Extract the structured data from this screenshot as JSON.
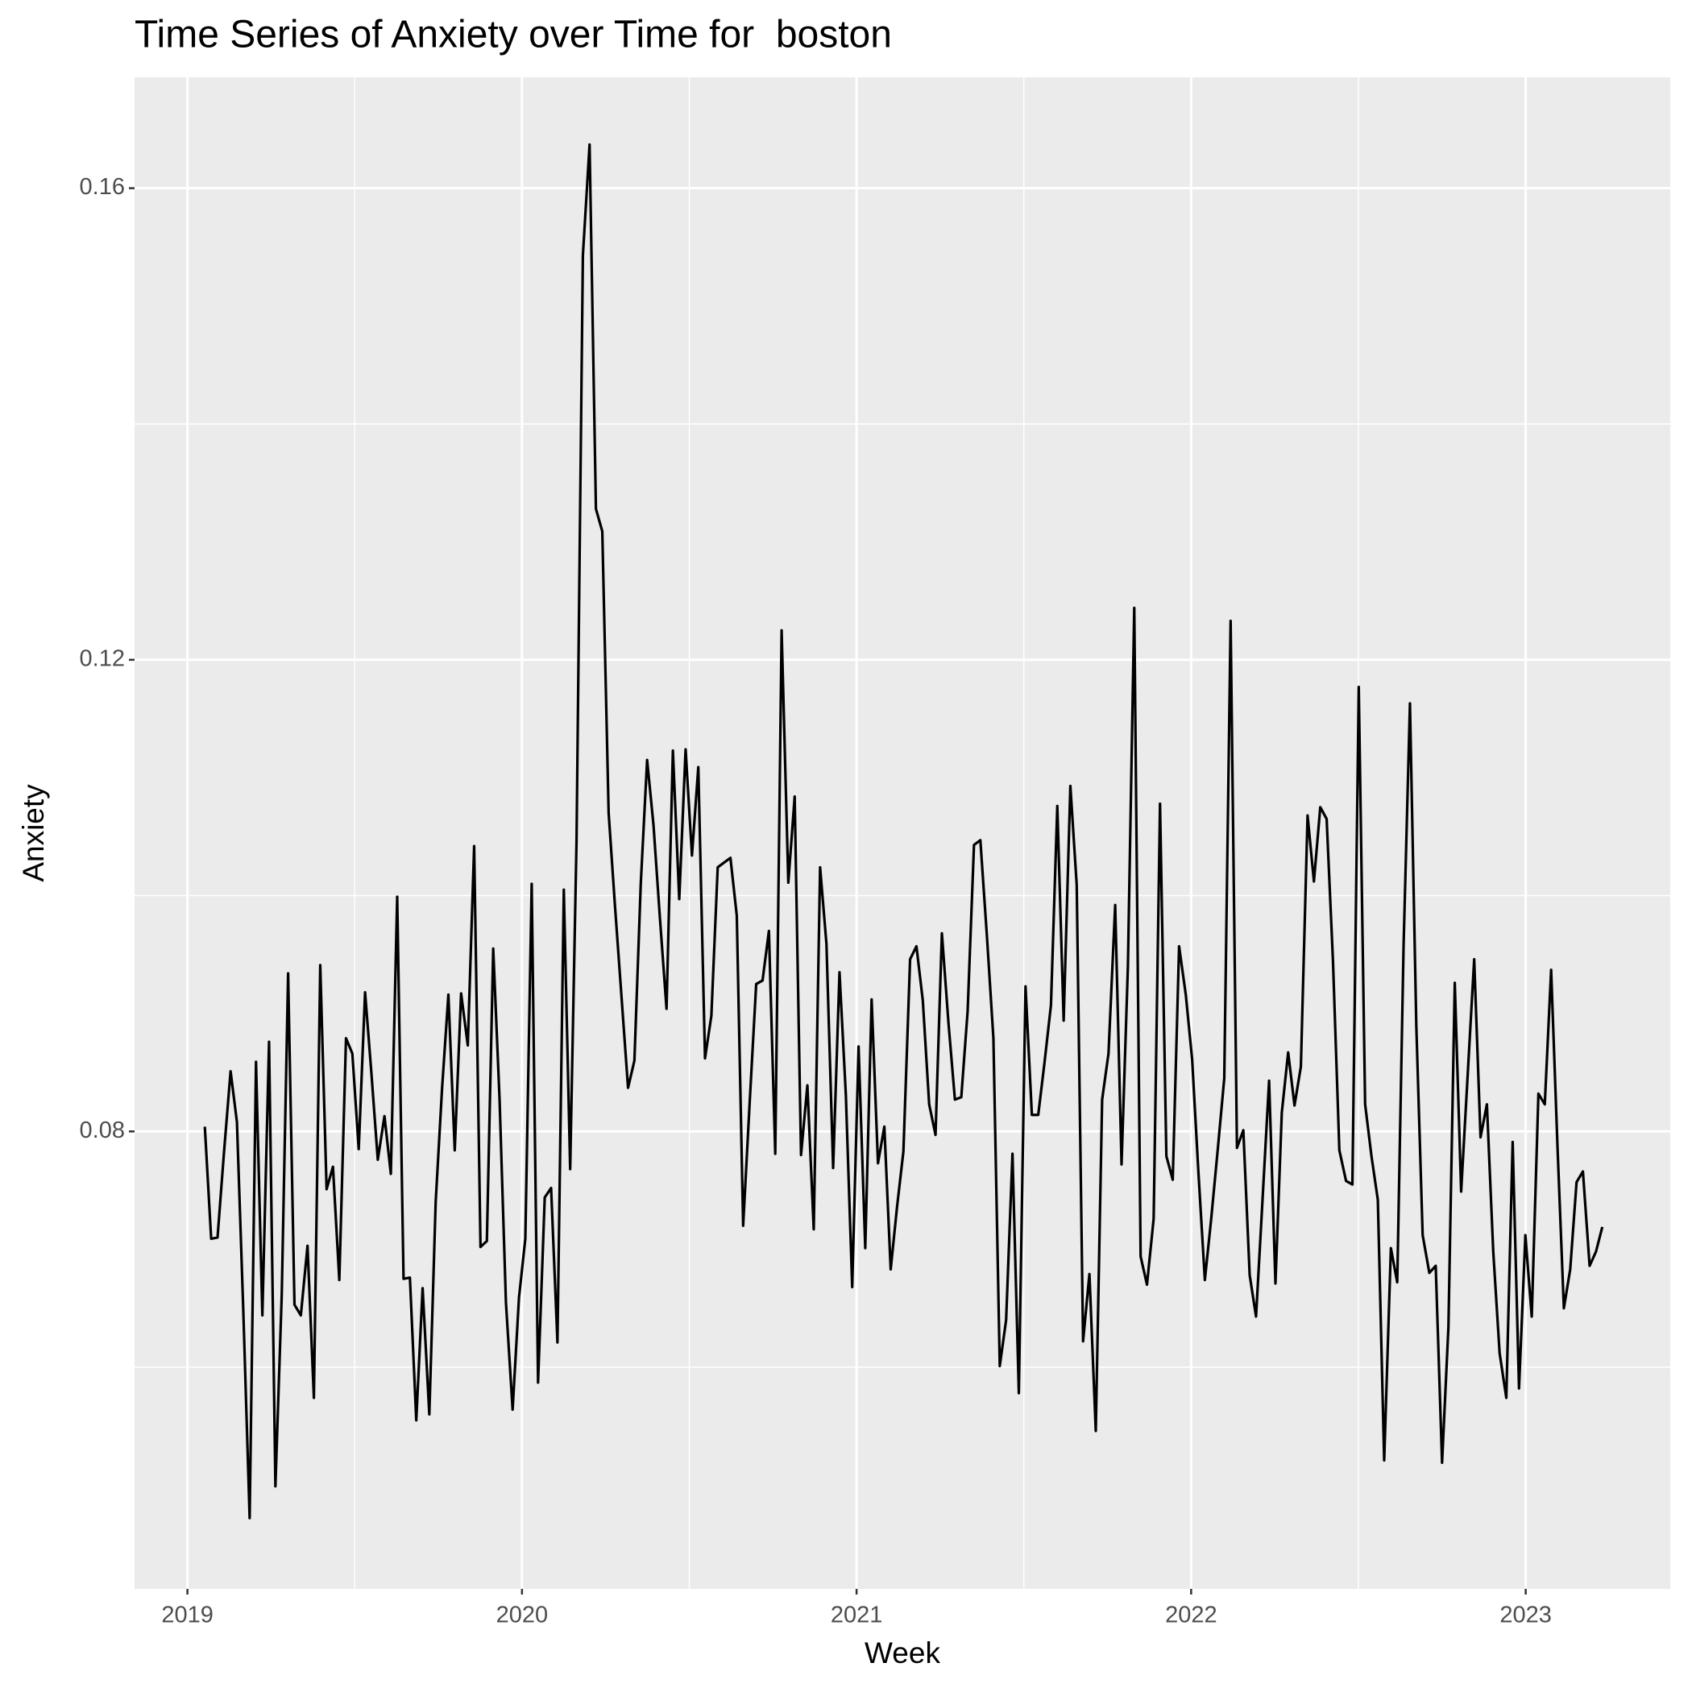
{
  "chart_data": {
    "type": "line",
    "title": "Time Series of Anxiety over Time for  boston",
    "x_label": "Week",
    "y_label": "Anxiety",
    "color": "#000000",
    "grid": true,
    "xlim": [
      2018.842,
      2023.432
    ],
    "xticks": [
      2019,
      2020,
      2021,
      2022,
      2023
    ],
    "ylim": [
      0.0412,
      0.1694
    ],
    "yticks": [
      0.08,
      0.12,
      0.16
    ],
    "x": [
      2019.052,
      2019.071,
      2019.09,
      2019.109,
      2019.129,
      2019.148,
      2019.167,
      2019.186,
      2019.205,
      2019.224,
      2019.244,
      2019.263,
      2019.282,
      2019.301,
      2019.32,
      2019.339,
      2019.359,
      2019.378,
      2019.397,
      2019.416,
      2019.435,
      2019.454,
      2019.474,
      2019.493,
      2019.512,
      2019.531,
      2019.55,
      2019.569,
      2019.589,
      2019.608,
      2019.627,
      2019.646,
      2019.665,
      2019.684,
      2019.703,
      2019.723,
      2019.742,
      2019.761,
      2019.78,
      2019.799,
      2019.818,
      2019.838,
      2019.857,
      2019.876,
      2019.895,
      2019.914,
      2019.933,
      2019.952,
      2019.972,
      2019.991,
      2020.01,
      2020.029,
      2020.048,
      2020.068,
      2020.087,
      2020.106,
      2020.125,
      2020.144,
      2020.163,
      2020.182,
      2020.202,
      2020.221,
      2020.24,
      2020.259,
      2020.278,
      2020.297,
      2020.317,
      2020.336,
      2020.355,
      2020.374,
      2020.393,
      2020.412,
      2020.432,
      2020.451,
      2020.47,
      2020.489,
      2020.508,
      2020.527,
      2020.547,
      2020.566,
      2020.585,
      2020.604,
      2020.623,
      2020.642,
      2020.661,
      2020.681,
      2020.7,
      2020.719,
      2020.738,
      2020.757,
      2020.776,
      2020.796,
      2020.815,
      2020.834,
      2020.853,
      2020.872,
      2020.891,
      2020.91,
      2020.93,
      2020.949,
      2020.968,
      2020.987,
      2021.006,
      2021.026,
      2021.045,
      2021.064,
      2021.083,
      2021.102,
      2021.121,
      2021.14,
      2021.16,
      2021.179,
      2021.198,
      2021.217,
      2021.236,
      2021.255,
      2021.275,
      2021.294,
      2021.313,
      2021.332,
      2021.351,
      2021.37,
      2021.39,
      2021.409,
      2021.428,
      2021.447,
      2021.466,
      2021.485,
      2021.505,
      2021.524,
      2021.543,
      2021.562,
      2021.581,
      2021.6,
      2021.619,
      2021.639,
      2021.658,
      2021.677,
      2021.696,
      2021.715,
      2021.734,
      2021.753,
      2021.773,
      2021.792,
      2021.811,
      2021.83,
      2021.849,
      2021.868,
      2021.888,
      2021.907,
      2021.926,
      2021.945,
      2021.964,
      2021.984,
      2022.003,
      2022.022,
      2022.041,
      2022.06,
      2022.08,
      2022.099,
      2022.118,
      2022.137,
      2022.156,
      2022.175,
      2022.194,
      2022.213,
      2022.233,
      2022.252,
      2022.271,
      2022.29,
      2022.309,
      2022.328,
      2022.348,
      2022.367,
      2022.386,
      2022.405,
      2022.424,
      2022.443,
      2022.463,
      2022.482,
      2022.501,
      2022.52,
      2022.539,
      2022.558,
      2022.577,
      2022.597,
      2022.616,
      2022.635,
      2022.654,
      2022.673,
      2022.692,
      2022.712,
      2022.731,
      2022.75,
      2022.769,
      2022.788,
      2022.807,
      2022.826,
      2022.846,
      2022.865,
      2022.884,
      2022.903,
      2022.922,
      2022.942,
      2022.961,
      2022.98,
      2022.999,
      2023.018,
      2023.038,
      2023.057,
      2023.076,
      2023.095,
      2023.114,
      2023.133,
      2023.152,
      2023.171,
      2023.191,
      2023.21,
      2023.229
    ],
    "values": [
      0.0804,
      0.0709,
      0.071,
      0.0781,
      0.0851,
      0.0808,
      0.0648,
      0.0472,
      0.0859,
      0.0644,
      0.0876,
      0.0499,
      0.0662,
      0.0934,
      0.0653,
      0.0644,
      0.0703,
      0.0574,
      0.0941,
      0.0751,
      0.077,
      0.0674,
      0.0879,
      0.0866,
      0.0785,
      0.0918,
      0.0849,
      0.0776,
      0.0813,
      0.0764,
      0.0999,
      0.0675,
      0.0676,
      0.0555,
      0.0667,
      0.056,
      0.074,
      0.0836,
      0.0916,
      0.0784,
      0.0917,
      0.0873,
      0.1042,
      0.0702,
      0.0707,
      0.0955,
      0.0827,
      0.0655,
      0.0564,
      0.0659,
      0.0709,
      0.101,
      0.0587,
      0.0744,
      0.0752,
      0.0621,
      0.1005,
      0.0768,
      0.1046,
      0.1543,
      0.1637,
      0.1328,
      0.1309,
      0.107,
      0.0991,
      0.0916,
      0.0837,
      0.086,
      0.101,
      0.1115,
      0.106,
      0.0982,
      0.0904,
      0.1123,
      0.0997,
      0.1124,
      0.1034,
      0.1109,
      0.0862,
      0.0898,
      0.1024,
      0.1028,
      0.1032,
      0.0983,
      0.072,
      0.0827,
      0.0925,
      0.0928,
      0.097,
      0.0781,
      0.1225,
      0.1011,
      0.1084,
      0.078,
      0.0839,
      0.0717,
      0.1024,
      0.0959,
      0.0769,
      0.0935,
      0.0831,
      0.0668,
      0.0872,
      0.0701,
      0.0912,
      0.0773,
      0.0804,
      0.0683,
      0.0736,
      0.0783,
      0.0946,
      0.0957,
      0.0911,
      0.0823,
      0.0797,
      0.0968,
      0.0891,
      0.0827,
      0.0829,
      0.0902,
      0.1043,
      0.1047,
      0.0964,
      0.0879,
      0.0601,
      0.064,
      0.0781,
      0.0578,
      0.0923,
      0.0814,
      0.0814,
      0.0859,
      0.0907,
      0.1076,
      0.0894,
      0.1093,
      0.1009,
      0.0622,
      0.0679,
      0.0546,
      0.0827,
      0.0866,
      0.0992,
      0.0772,
      0.094,
      0.1244,
      0.0694,
      0.067,
      0.0726,
      0.1078,
      0.0779,
      0.0759,
      0.0957,
      0.0916,
      0.0861,
      0.0764,
      0.0674,
      0.0726,
      0.0786,
      0.0845,
      0.1233,
      0.0786,
      0.0801,
      0.0678,
      0.0643,
      0.074,
      0.0843,
      0.0671,
      0.0816,
      0.0867,
      0.0822,
      0.0855,
      0.1068,
      0.1012,
      0.1075,
      0.1065,
      0.0944,
      0.0784,
      0.0758,
      0.0755,
      0.1177,
      0.0823,
      0.0779,
      0.0742,
      0.0521,
      0.0701,
      0.0672,
      0.0958,
      0.1163,
      0.089,
      0.0712,
      0.068,
      0.0686,
      0.0519,
      0.0634,
      0.0926,
      0.0749,
      0.0845,
      0.0946,
      0.0795,
      0.0823,
      0.0698,
      0.0612,
      0.0574,
      0.0791,
      0.0582,
      0.0712,
      0.0643,
      0.0832,
      0.0823,
      0.0937,
      0.0787,
      0.065,
      0.0683,
      0.0757,
      0.0766,
      0.0686,
      0.0698,
      0.0719
    ]
  }
}
